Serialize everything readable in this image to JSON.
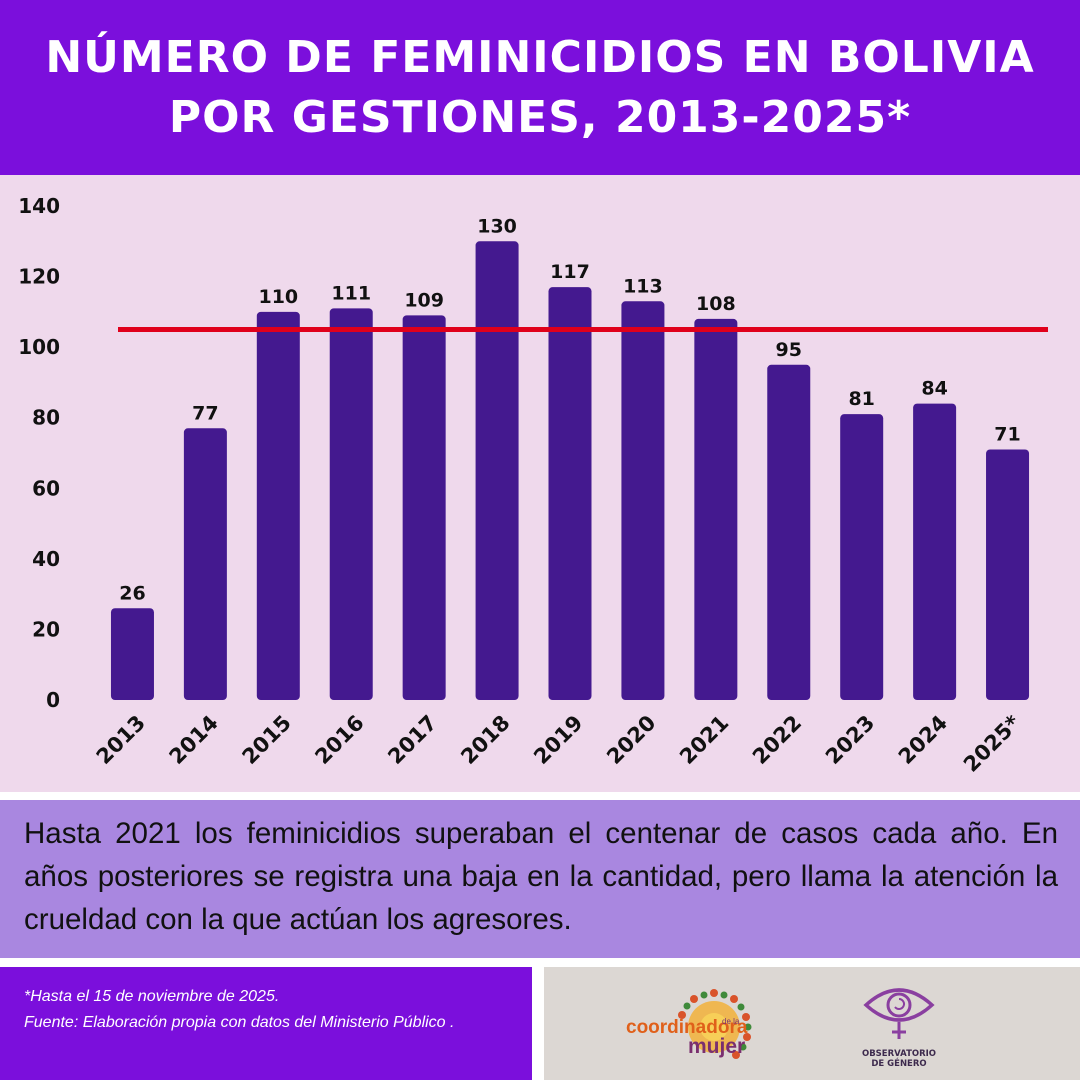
{
  "header": {
    "title_line1": "NÚMERO DE FEMINICIDIOS EN BOLIVIA",
    "title_line2": "POR GESTIONES, 2013-2025*"
  },
  "colors": {
    "header_bg": "#7b0fdc",
    "chart_bg": "#efd9ec",
    "bar": "#44198f",
    "reference_line": "#e0001b",
    "note_bg": "#a987e0",
    "footer_right_bg": "#dcd7d3"
  },
  "chart_data": {
    "type": "bar",
    "categories": [
      "2013",
      "2014",
      "2015",
      "2016",
      "2017",
      "2018",
      "2019",
      "2020",
      "2021",
      "2022",
      "2023",
      "2024",
      "2025*"
    ],
    "values": [
      26,
      77,
      110,
      111,
      109,
      130,
      117,
      113,
      108,
      95,
      81,
      84,
      71
    ],
    "data_labels": [
      "26",
      "77",
      "110",
      "111",
      "109",
      "130",
      "117",
      "113",
      "108",
      "95",
      "81",
      "84",
      "71"
    ],
    "title": "NÚMERO DE FEMINICIDIOS EN BOLIVIA POR GESTIONES, 2013-2025*",
    "xlabel": "",
    "ylabel": "",
    "ylim": [
      0,
      140
    ],
    "yticks": [
      0,
      20,
      40,
      60,
      80,
      100,
      120,
      140
    ],
    "ytick_labels": [
      "0",
      "20",
      "40",
      "60",
      "80",
      "100",
      "120",
      "140"
    ],
    "reference_line": {
      "value": 105,
      "color": "#e0001b"
    },
    "x_tick_rotation": "-45",
    "grid": false,
    "legend": "none"
  },
  "note": {
    "text": "Hasta 2021 los feminicidios superaban el centenar de casos cada año. En años posteriores se registra una baja en la cantidad, pero llama la atención la crueldad con la que actúan los agresores."
  },
  "footer": {
    "footnote": "*Hasta el 15 de noviembre de 2025.",
    "source": "Fuente: Elaboración propia con datos del Ministerio Público ."
  },
  "logos": {
    "coordinadora_text1": "coordinadora",
    "coordinadora_small": "de la",
    "coordinadora_text2": "mujer",
    "observatorio_line1": "OBSERVATORIO",
    "observatorio_line2": "DE GÉNERO",
    "observatorio_icon": "eye-venus-icon"
  }
}
